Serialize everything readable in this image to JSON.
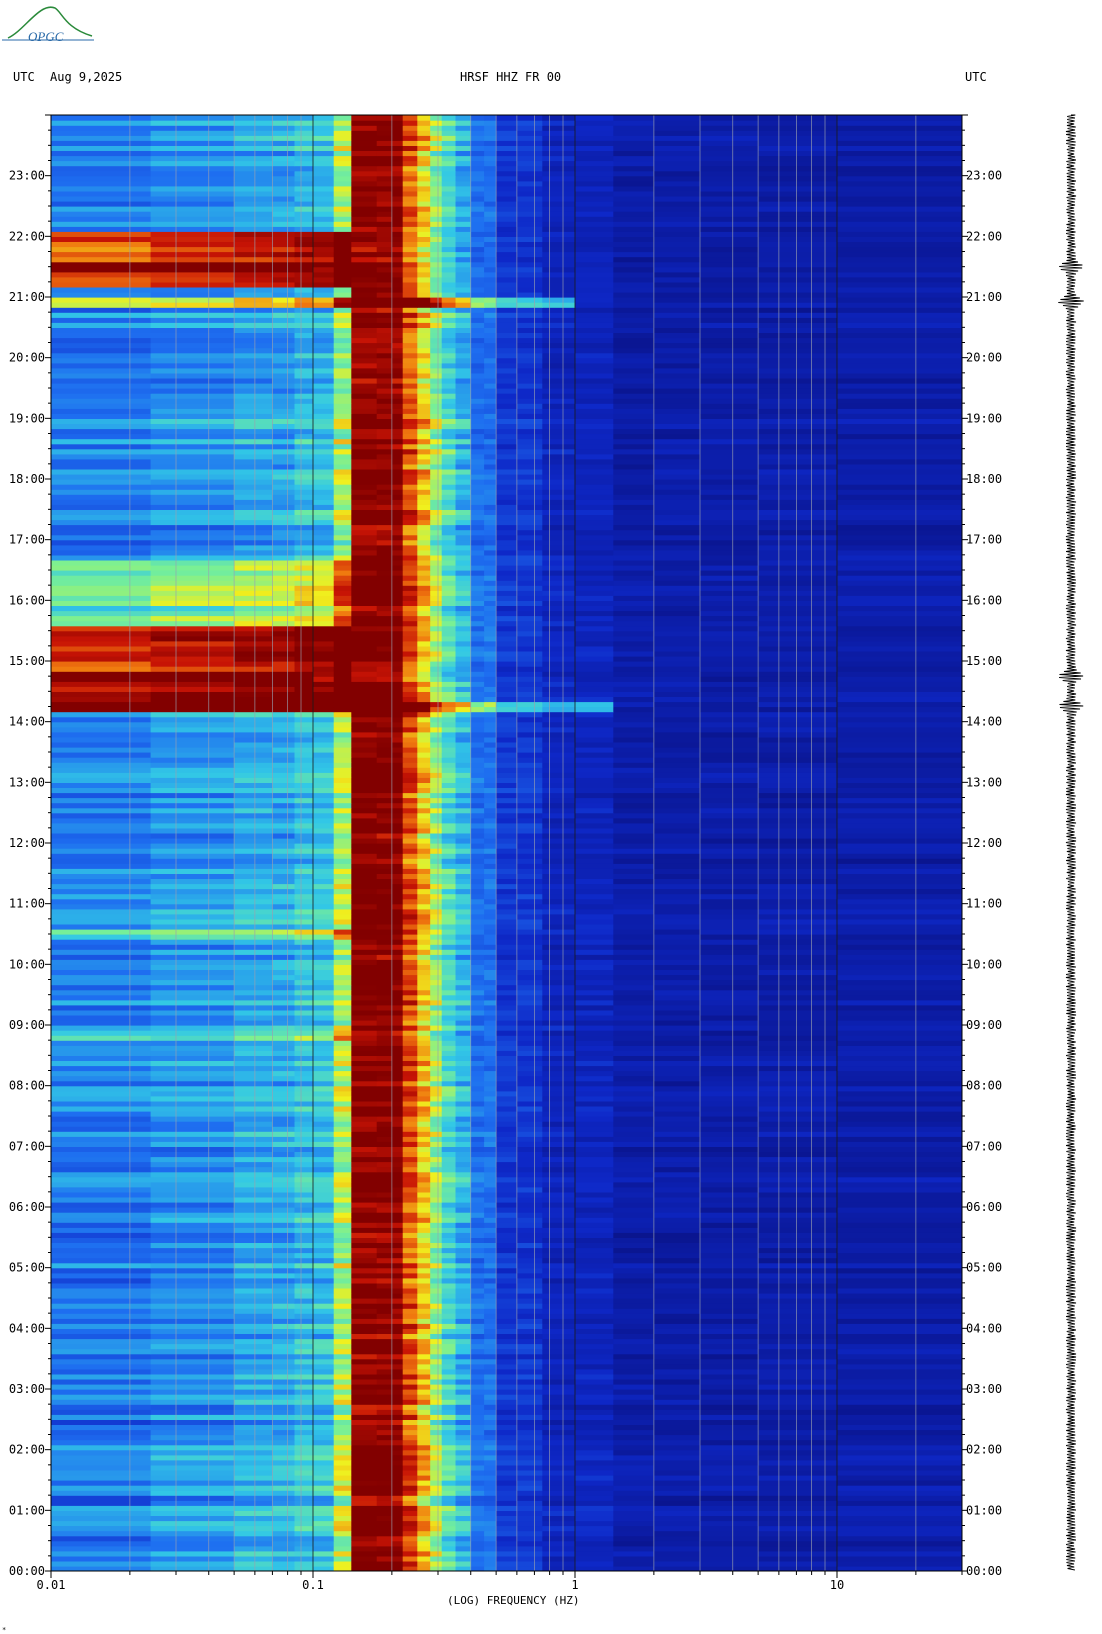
{
  "header": {
    "left_label": "UTC",
    "date": "Aug 9,2025",
    "station": "HRSF HHZ FR 00",
    "right_label": "UTC",
    "logo_text": "OPGC"
  },
  "chart_data": {
    "type": "heatmap",
    "title": "HRSF HHZ FR 00",
    "xlabel": "(LOG) FREQUENCY (HZ)",
    "ylabel": "UTC",
    "x_scale": "log",
    "xlim": [
      0.01,
      30
    ],
    "ylim_hours": [
      0,
      24
    ],
    "x_ticks": [
      "0.01",
      "0.1",
      "1",
      "10"
    ],
    "y_ticks": [
      "00:00",
      "01:00",
      "02:00",
      "03:00",
      "04:00",
      "05:00",
      "06:00",
      "07:00",
      "08:00",
      "09:00",
      "10:00",
      "11:00",
      "12:00",
      "13:00",
      "14:00",
      "15:00",
      "16:00",
      "17:00",
      "18:00",
      "19:00",
      "20:00",
      "21:00",
      "22:00",
      "23:00"
    ],
    "microseism_peak_hz": [
      0.14,
      0.22
    ],
    "events": [
      {
        "time": "14:15",
        "freq_max_hz": 1.5
      },
      {
        "time": "14:45",
        "freq_max_hz": 0.1
      },
      {
        "time": "21:30",
        "freq_max_hz": 0.1
      },
      {
        "time": "20:55",
        "freq_max_hz": 1.0
      }
    ],
    "colors": {
      "low": "#0a1a9e",
      "mid_low": "#1f74f0",
      "mid": "#35e0e0",
      "mid_high": "#f0f020",
      "high": "#f08010",
      "max": "#8b0000"
    }
  }
}
